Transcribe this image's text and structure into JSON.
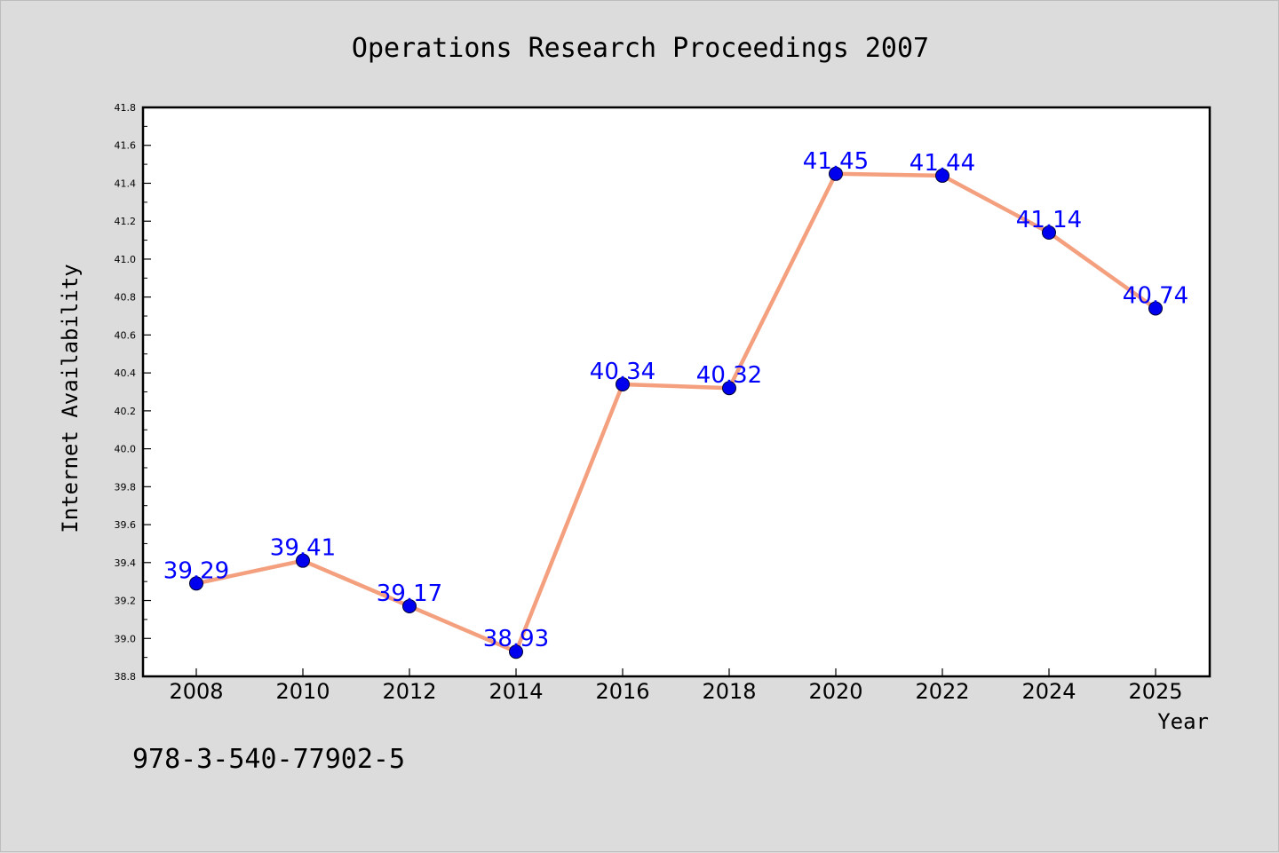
{
  "chart_data": {
    "type": "line",
    "title": "Operations Research Proceedings 2007",
    "xlabel": "Year",
    "ylabel": "Internet Availability",
    "categories": [
      "2008",
      "2010",
      "2012",
      "2014",
      "2016",
      "2018",
      "2020",
      "2022",
      "2024",
      "2025"
    ],
    "values": [
      39.29,
      39.41,
      39.17,
      38.93,
      40.34,
      40.32,
      41.45,
      41.44,
      41.14,
      40.74
    ],
    "data_labels": [
      "39.29",
      "39.41",
      "39.17",
      "38.93",
      "40.34",
      "40.32",
      "41.45",
      "41.44",
      "41.14",
      "40.74"
    ],
    "ylim": [
      38.8,
      41.8
    ],
    "yticks": [
      "38.8",
      "39.0",
      "39.2",
      "39.4",
      "39.6",
      "39.8",
      "40.0",
      "40.2",
      "40.4",
      "40.6",
      "40.8",
      "41.0",
      "41.2",
      "41.4",
      "41.6",
      "41.8"
    ],
    "grid": false,
    "legend": "none",
    "colors": {
      "line": "#f4a07f",
      "marker": "#0000ee",
      "data_label": "#0000ff",
      "background": "#dcdcdc",
      "plot_area": "#ffffff"
    }
  },
  "footer": {
    "isbn": "978-3-540-77902-5"
  }
}
